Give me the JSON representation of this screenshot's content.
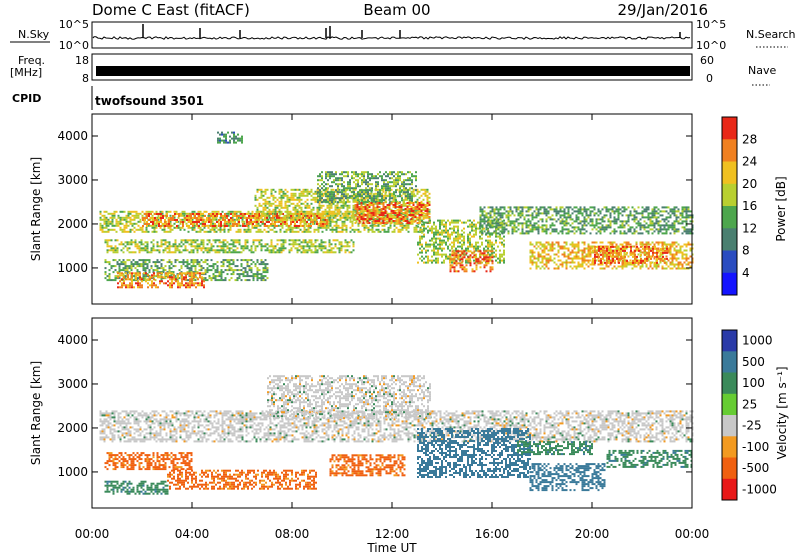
{
  "header": {
    "station": "Dome C East (fitACF)",
    "beam": "Beam 00",
    "date": "29/Jan/2016"
  },
  "aux_panels": {
    "nsky_label": "N.Sky",
    "nsky_ticks": [
      "10^5",
      "10^0"
    ],
    "nsearch_label": "N.Search",
    "nsearch_ticks": [
      "10^5",
      "10^0"
    ],
    "freq_label": "Freq.",
    "freq_unit": "[MHz]",
    "freq_ticks": [
      "18",
      "8"
    ],
    "nave_label": "Nave",
    "nave_ticks": [
      "60",
      "0"
    ],
    "cpid_label": "CPID",
    "cpid_value": "twofsound 3501"
  },
  "colors": {
    "trace": "#000000",
    "power_scale": [
      "#1414ff",
      "#2a4cc0",
      "#4a7f70",
      "#4da64d",
      "#b8cf30",
      "#f0c020",
      "#f08020",
      "#e82818"
    ],
    "velocity_scale": [
      "#e81818",
      "#f06010",
      "#f39a20",
      "#c8c8c8",
      "#66cc33",
      "#3a8a5a",
      "#3a7a9a",
      "#2a3aa8"
    ]
  },
  "chart_data": [
    {
      "type": "heatmap",
      "title": "",
      "xlabel": "",
      "ylabel": "Slant Range [km]",
      "x_ticks": [
        "00:00",
        "04:00",
        "08:00",
        "12:00",
        "16:00",
        "20:00",
        "00:00"
      ],
      "xlim": [
        0,
        24
      ],
      "y_ticks": [
        1000,
        2000,
        3000,
        4000
      ],
      "ylim": [
        180,
        4500
      ],
      "colorbar": {
        "label": "Power [dB]",
        "ticks": [
          4,
          8,
          12,
          16,
          20,
          24,
          28
        ],
        "range": [
          0,
          32
        ]
      },
      "regions": [
        {
          "t0": 0.3,
          "t1": 13.2,
          "r0": 1800,
          "r1": 2300,
          "value": 18
        },
        {
          "t0": 2.0,
          "t1": 9.5,
          "r0": 1950,
          "r1": 2250,
          "value": 26
        },
        {
          "t0": 0.5,
          "t1": 10.5,
          "r0": 1350,
          "r1": 1650,
          "value": 17
        },
        {
          "t0": 0.5,
          "t1": 7.0,
          "r0": 700,
          "r1": 1200,
          "value": 14
        },
        {
          "t0": 1.0,
          "t1": 4.5,
          "r0": 550,
          "r1": 900,
          "value": 25
        },
        {
          "t0": 6.5,
          "t1": 13.5,
          "r0": 2100,
          "r1": 2800,
          "value": 19
        },
        {
          "t0": 9.0,
          "t1": 13.0,
          "r0": 2500,
          "r1": 3200,
          "value": 14
        },
        {
          "t0": 10.5,
          "t1": 13.5,
          "r0": 2000,
          "r1": 2500,
          "value": 27
        },
        {
          "t0": 13.0,
          "t1": 16.5,
          "r0": 1100,
          "r1": 2100,
          "value": 17
        },
        {
          "t0": 14.3,
          "t1": 16.0,
          "r0": 900,
          "r1": 1400,
          "value": 27
        },
        {
          "t0": 15.5,
          "t1": 24.0,
          "r0": 1800,
          "r1": 2400,
          "value": 13
        },
        {
          "t0": 17.5,
          "t1": 24.0,
          "r0": 1000,
          "r1": 1600,
          "value": 22
        },
        {
          "t0": 20.0,
          "t1": 23.0,
          "r0": 1100,
          "r1": 1500,
          "value": 27
        },
        {
          "t0": 5.0,
          "t1": 6.0,
          "r0": 3850,
          "r1": 4100,
          "value": 11
        }
      ]
    },
    {
      "type": "heatmap",
      "title": "",
      "xlabel": "Time UT",
      "ylabel": "Slant Range [km]",
      "x_ticks": [
        "00:00",
        "04:00",
        "08:00",
        "12:00",
        "16:00",
        "20:00",
        "00:00"
      ],
      "xlim": [
        0,
        24
      ],
      "y_ticks": [
        1000,
        2000,
        3000,
        4000
      ],
      "ylim": [
        180,
        4500
      ],
      "colorbar": {
        "label": "Velocity [m s⁻¹]",
        "ticks": [
          "1000",
          "500",
          "100",
          "25",
          "-25",
          "-100",
          "-500",
          "-1000"
        ]
      },
      "regions": [
        {
          "t0": 0.3,
          "t1": 24.0,
          "r0": 1700,
          "r1": 2400,
          "value": 0
        },
        {
          "t0": 7.0,
          "t1": 13.5,
          "r0": 2200,
          "r1": 3200,
          "value": 0
        },
        {
          "t0": 0.5,
          "t1": 4.0,
          "r0": 1050,
          "r1": 1450,
          "value": -120
        },
        {
          "t0": 3.0,
          "t1": 9.0,
          "r0": 600,
          "r1": 1050,
          "value": -120
        },
        {
          "t0": 9.5,
          "t1": 12.5,
          "r0": 900,
          "r1": 1400,
          "value": -120
        },
        {
          "t0": 0.5,
          "t1": 3.0,
          "r0": 500,
          "r1": 800,
          "value": 80
        },
        {
          "t0": 13.0,
          "t1": 17.5,
          "r0": 900,
          "r1": 2000,
          "value": 300
        },
        {
          "t0": 17.5,
          "t1": 20.5,
          "r0": 600,
          "r1": 1200,
          "value": 300
        },
        {
          "t0": 20.5,
          "t1": 24.0,
          "r0": 1100,
          "r1": 1500,
          "value": 80
        },
        {
          "t0": 17.0,
          "t1": 20.0,
          "r0": 1400,
          "r1": 1700,
          "value": 80
        }
      ]
    }
  ]
}
